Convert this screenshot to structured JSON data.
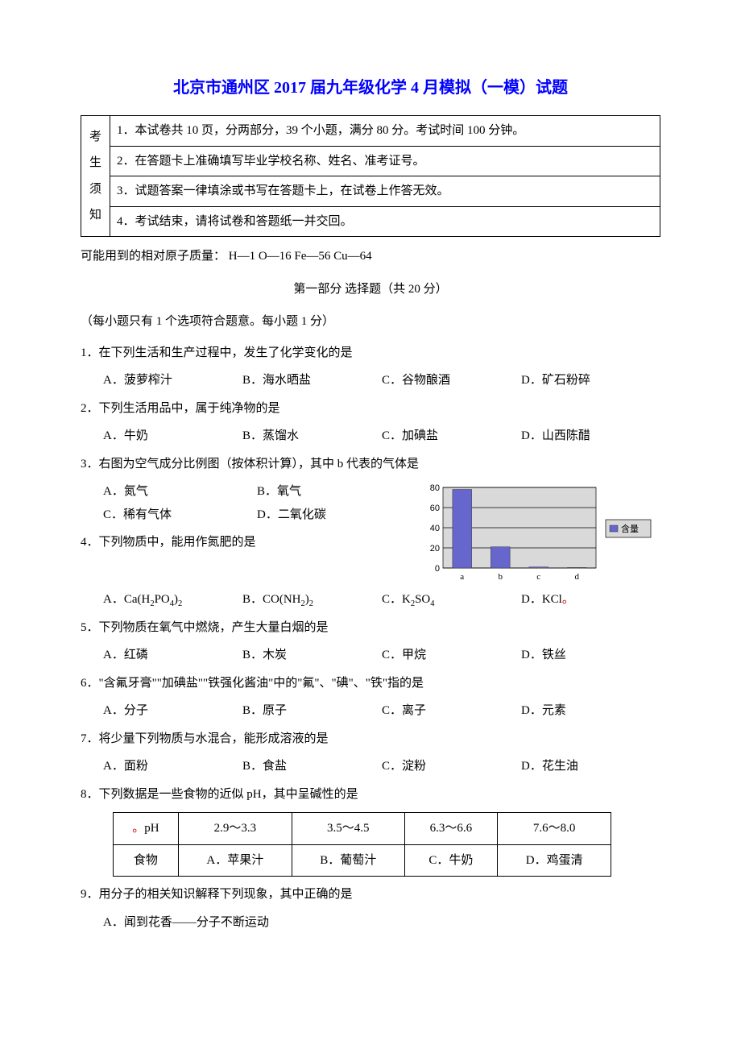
{
  "title": "北京市通州区 2017 届九年级化学 4 月模拟（一模）试题",
  "notice": {
    "left": [
      "考",
      "生",
      "须",
      "知"
    ],
    "items": [
      "1．本试卷共 10 页，分两部分，39 个小题，满分 80 分。考试时间 100 分钟。",
      "2．在答题卡上准确填写毕业学校名称、姓名、准考证号。",
      "3．试题答案一律填涂或书写在答题卡上，在试卷上作答无效。",
      "4．考试结束，请将试卷和答题纸一并交回。"
    ]
  },
  "atomic": "可能用到的相对原子质量：  H—1   O—16     Fe—56   Cu—64",
  "part_header": "第一部分   选择题（共 20 分）",
  "sub_note": "（每小题只有 1 个选项符合题意。每小题 1 分）",
  "q1": {
    "stem": "1．在下列生活和生产过程中，发生了化学变化的是",
    "A": "A．菠萝榨汁",
    "B": "B．海水晒盐",
    "C": "C．谷物酿酒",
    "D": "D．矿石粉碎"
  },
  "q2": {
    "stem": "2．下列生活用品中，属于纯净物的是",
    "A": "A．牛奶",
    "B": "B．蒸馏水",
    "C": "C．加碘盐",
    "D": "D．山西陈醋"
  },
  "q3": {
    "stem": "3．右图为空气成分比例图（按体积计算），其中 b 代表的气体是",
    "A": "A．氮气",
    "B": "B．氧气",
    "C": "C．稀有气体",
    "D": "D．二氧化碳"
  },
  "chart": {
    "type": "bar",
    "categories": [
      "a",
      "b",
      "c",
      "d"
    ],
    "values": [
      78,
      21,
      1,
      0.5
    ],
    "bar_color": "#6666cc",
    "ylim": [
      0,
      80
    ],
    "ytick_step": 20,
    "yticks": [
      "0",
      "20",
      "40",
      "60",
      "80"
    ],
    "plot_bg": "#d9d9d9",
    "grid_color": "#000000",
    "legend_label": "含量",
    "legend_marker_color": "#6666cc",
    "legend_bg": "#d9d9d9",
    "axis_color": "#000000",
    "label_fontsize": 11
  },
  "q4": {
    "stem": "4．下列物质中，能用作氮肥的是",
    "A_pre": "A．Ca(H",
    "A_sub1": "2",
    "A_mid": "PO",
    "A_sub2": "4",
    "A_post": ")",
    "A_sub3": "2",
    "B_pre": "B．CO(NH",
    "B_sub1": "2",
    "B_mid": ")",
    "B_sub2": "2",
    "C_pre": "C．K",
    "C_sub1": "2",
    "C_mid": "SO",
    "C_sub2": "4",
    "D_pre": "D．KCl",
    "D_dot": "。"
  },
  "q5": {
    "stem": "5．下列物质在氧气中燃烧，产生大量白烟的是",
    "A": "A．红磷",
    "B": "B．木炭",
    "C": "C．甲烷",
    "D": "D．铁丝"
  },
  "q6": {
    "stem": "6．\"含氟牙膏\"\"加碘盐\"\"铁强化酱油\"中的\"氟\"、\"碘\"、\"铁\"指的是",
    "A": "A．分子",
    "B": "B．原子",
    "C": "C．离子",
    "D": "D．元素"
  },
  "q7": {
    "stem": "7．将少量下列物质与水混合，能形成溶液的是",
    "A": "A．面粉",
    "B": "B．食盐",
    "C": "C．淀粉",
    "D": "D．花生油"
  },
  "q8": {
    "stem": "8．下列数据是一些食物的近似 pH，其中呈碱性的是",
    "table": {
      "r1": [
        "pH",
        "2.9～3.3",
        "3.5～4.5",
        "6.3～6.6",
        "7.6～8.0"
      ],
      "r1_marker": "。",
      "r2": [
        "食物",
        "A．苹果汁",
        "B．葡萄汁",
        "C．牛奶",
        "D．鸡蛋清"
      ]
    }
  },
  "q9": {
    "stem": "9．用分子的相关知识解释下列现象，其中正确的是",
    "A": "A．闻到花香——分子不断运动"
  }
}
